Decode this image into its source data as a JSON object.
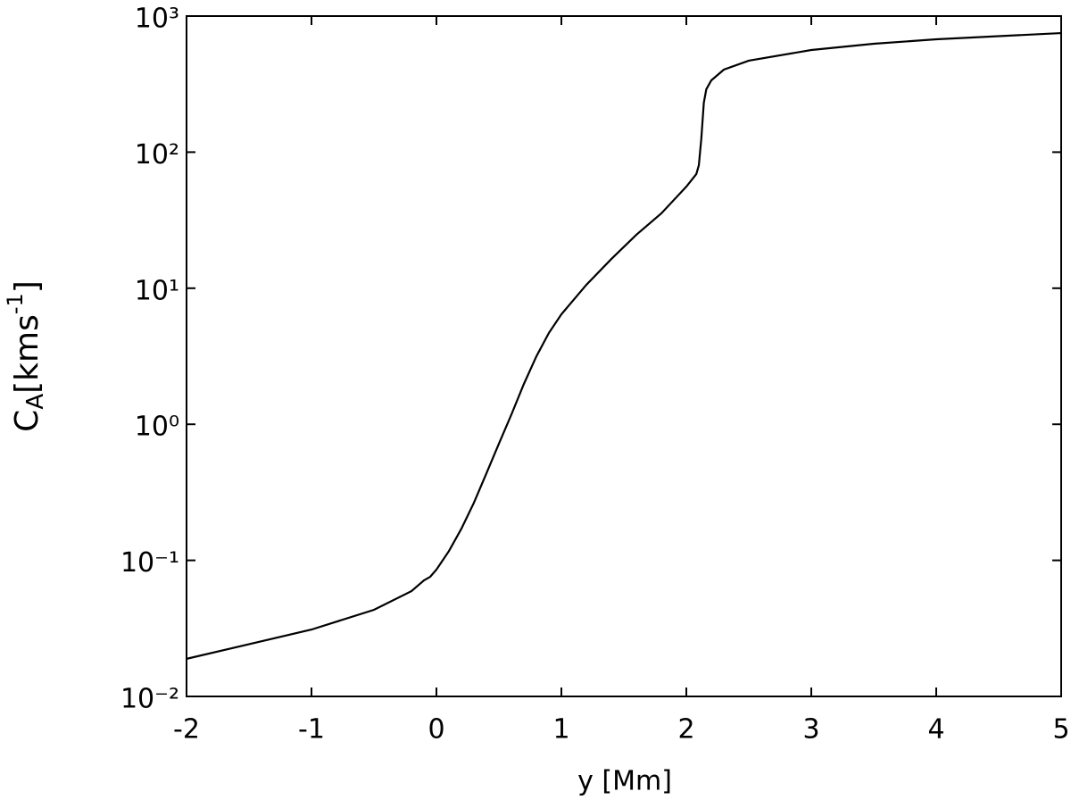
{
  "chart_data": {
    "type": "line",
    "xlabel": "y [Mm]",
    "ylabel": [
      "C",
      "A",
      "[kms",
      "-1",
      "]"
    ],
    "x": [
      -2,
      -1,
      -0.5,
      -0.2,
      -0.1,
      -0.05,
      0,
      0.1,
      0.2,
      0.3,
      0.4,
      0.5,
      0.6,
      0.7,
      0.8,
      0.9,
      1.0,
      1.2,
      1.4,
      1.6,
      1.8,
      2.0,
      2.08,
      2.1,
      2.12,
      2.14,
      2.16,
      2.2,
      2.3,
      2.5,
      3,
      3.5,
      4,
      5
    ],
    "series": [
      {
        "color": "#000000",
        "values": [
          0.0189,
          0.031,
          0.0433,
          0.0594,
          0.0713,
          0.0757,
          0.0855,
          0.117,
          0.171,
          0.265,
          0.436,
          0.72,
          1.18,
          1.98,
          3.16,
          4.69,
          6.43,
          10.6,
          16.4,
          24.7,
          35.5,
          55.8,
          69,
          80,
          126,
          231,
          290,
          337,
          404,
          470,
          563,
          626,
          675,
          750
        ]
      }
    ],
    "xlim": [
      -2,
      5
    ],
    "xticks": [
      -2,
      -1,
      0,
      1,
      2,
      3,
      4,
      5
    ],
    "ylim": [
      0.01,
      1000
    ],
    "log_y": true,
    "yticks": [
      {
        "value": 0.01,
        "label": "10⁻²"
      },
      {
        "value": 0.1,
        "label": "10⁻¹"
      },
      {
        "value": 1,
        "label": "10⁰"
      },
      {
        "value": 10,
        "label": "10¹"
      },
      {
        "value": 100,
        "label": "10²"
      },
      {
        "value": 1000,
        "label": "10³"
      }
    ],
    "grid": false
  }
}
